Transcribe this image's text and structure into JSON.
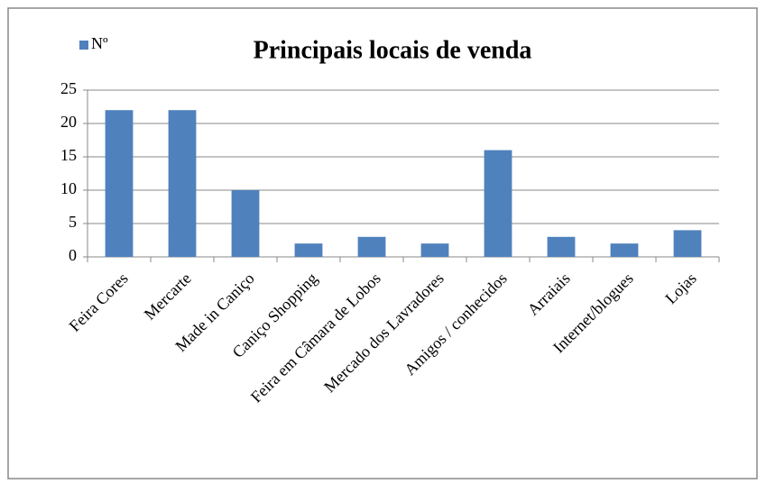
{
  "chart_data": {
    "type": "bar",
    "title": "Principais locais de venda",
    "categories": [
      "Feira Cores",
      "Mercarte",
      "Made in Caniço",
      "Caniço Shopping",
      "Feira em Câmara de Lobos",
      "Mercado dos Lavradores",
      "Amigos / conhecidos",
      "Arraiais",
      "Internet/blogues",
      "Lojas"
    ],
    "series": [
      {
        "name": "Nº",
        "color": "#4f81bd",
        "values": [
          22,
          22,
          10,
          2,
          3,
          2,
          16,
          3,
          2,
          4
        ]
      }
    ],
    "ylim": [
      0,
      25
    ],
    "yticks": [
      0,
      5,
      10,
      15,
      20,
      25
    ],
    "grid": true,
    "legend": "top-left"
  }
}
